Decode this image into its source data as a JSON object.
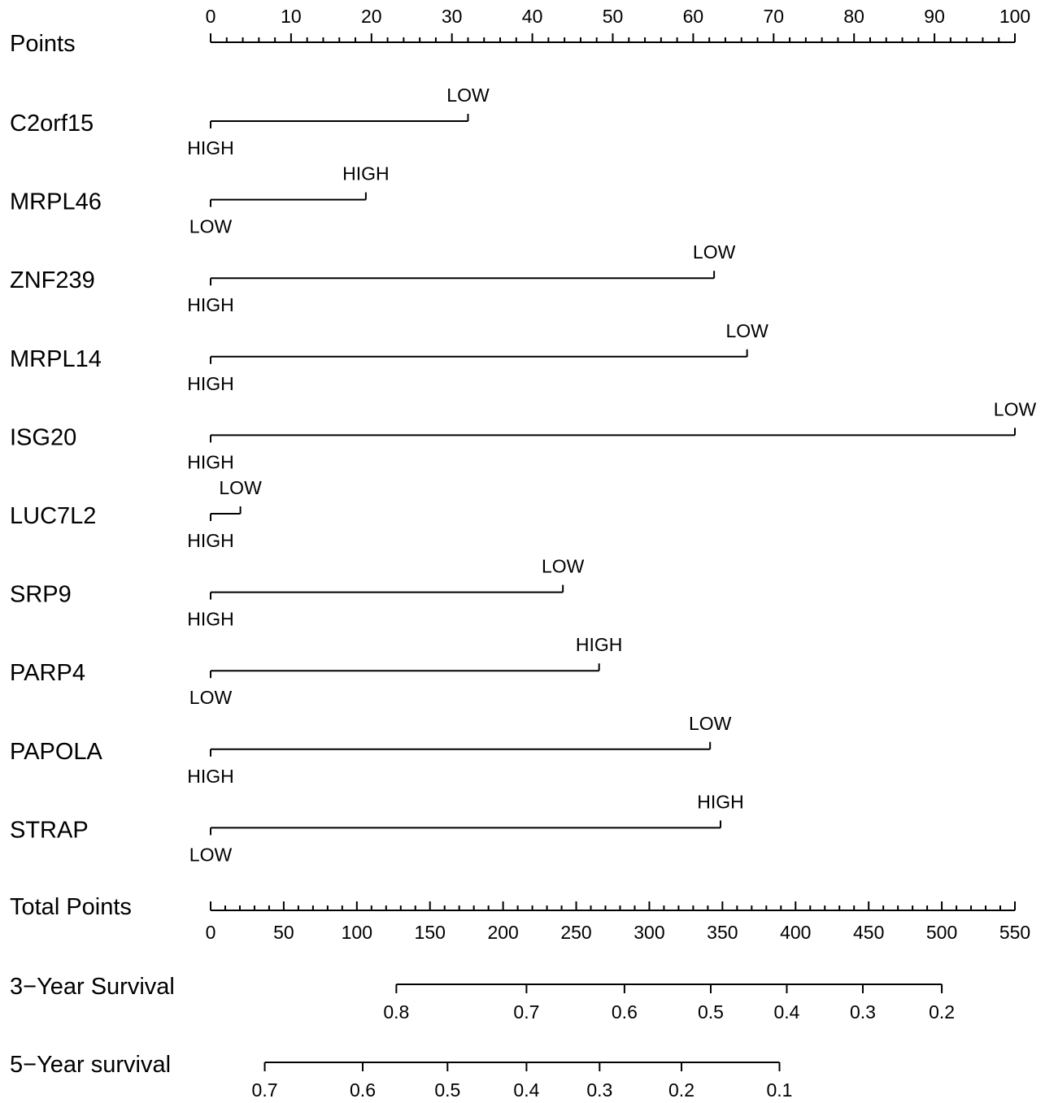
{
  "chart_data": {
    "type": "nomogram",
    "points_axis": {
      "label": "Points",
      "range": [
        0,
        100
      ],
      "major_ticks": [
        0,
        10,
        20,
        30,
        40,
        50,
        60,
        70,
        80,
        90,
        100
      ],
      "tick_labels": [
        "0",
        "10",
        "20",
        "30",
        "40",
        "50",
        "60",
        "70",
        "80",
        "90",
        "100"
      ],
      "minor_step": 2
    },
    "variables": [
      {
        "name": "C2orf15",
        "levels": [
          {
            "label": "HIGH",
            "points": 0
          },
          {
            "label": "LOW",
            "points": 32
          }
        ]
      },
      {
        "name": "MRPL46",
        "levels": [
          {
            "label": "LOW",
            "points": 0
          },
          {
            "label": "HIGH",
            "points": 19.3
          }
        ]
      },
      {
        "name": "ZNF239",
        "levels": [
          {
            "label": "HIGH",
            "points": 0
          },
          {
            "label": "LOW",
            "points": 62.6
          }
        ]
      },
      {
        "name": "MRPL14",
        "levels": [
          {
            "label": "HIGH",
            "points": 0
          },
          {
            "label": "LOW",
            "points": 66.7
          }
        ]
      },
      {
        "name": "ISG20",
        "levels": [
          {
            "label": "HIGH",
            "points": 0
          },
          {
            "label": "LOW",
            "points": 100
          }
        ]
      },
      {
        "name": "LUC7L2",
        "levels": [
          {
            "label": "HIGH",
            "points": 0
          },
          {
            "label": "LOW",
            "points": 3.7
          }
        ]
      },
      {
        "name": "SRP9",
        "levels": [
          {
            "label": "HIGH",
            "points": 0
          },
          {
            "label": "LOW",
            "points": 43.8
          }
        ]
      },
      {
        "name": "PARP4",
        "levels": [
          {
            "label": "LOW",
            "points": 0
          },
          {
            "label": "HIGH",
            "points": 48.3
          }
        ]
      },
      {
        "name": "PAPOLA",
        "levels": [
          {
            "label": "HIGH",
            "points": 0
          },
          {
            "label": "LOW",
            "points": 62.1
          }
        ]
      },
      {
        "name": "STRAP",
        "levels": [
          {
            "label": "LOW",
            "points": 0
          },
          {
            "label": "HIGH",
            "points": 63.4
          }
        ]
      }
    ],
    "total_points_axis": {
      "label": "Total Points",
      "range": [
        0,
        550
      ],
      "major_ticks": [
        0,
        50,
        100,
        150,
        200,
        250,
        300,
        350,
        400,
        450,
        500,
        550
      ],
      "tick_labels": [
        "0",
        "50",
        "100",
        "150",
        "200",
        "250",
        "300",
        "350",
        "400",
        "450",
        "500",
        "550"
      ],
      "minor_step": 10
    },
    "survival_axes": [
      {
        "label": "3−Year Survival",
        "ticks": [
          {
            "label": "0.8",
            "total_points": 127
          },
          {
            "label": "0.7",
            "total_points": 216
          },
          {
            "label": "0.6",
            "total_points": 283
          },
          {
            "label": "0.5",
            "total_points": 342
          },
          {
            "label": "0.4",
            "total_points": 394
          },
          {
            "label": "0.3",
            "total_points": 446
          },
          {
            "label": "0.2",
            "total_points": 500
          }
        ]
      },
      {
        "label": "5−Year survival",
        "ticks": [
          {
            "label": "0.7",
            "total_points": 37
          },
          {
            "label": "0.6",
            "total_points": 104
          },
          {
            "label": "0.5",
            "total_points": 162
          },
          {
            "label": "0.4",
            "total_points": 216
          },
          {
            "label": "0.3",
            "total_points": 266
          },
          {
            "label": "0.2",
            "total_points": 322
          },
          {
            "label": "0.1",
            "total_points": 389
          }
        ]
      }
    ]
  }
}
